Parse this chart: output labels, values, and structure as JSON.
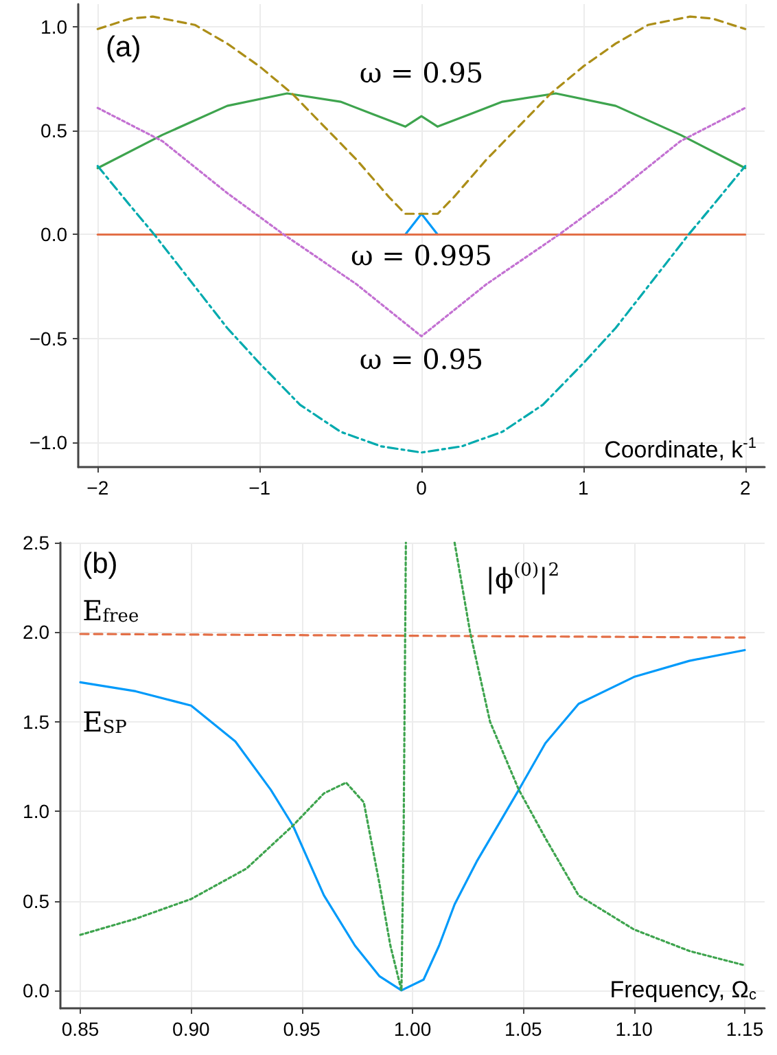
{
  "chart_data": [
    {
      "type": "line",
      "xlabel": "Coordinate, k$^{-1}$",
      "xlim": [
        -2.12,
        2.12
      ],
      "ylim": [
        -1.12,
        1.11
      ],
      "xticks": [
        {
          "value": -2,
          "label": "−2"
        },
        {
          "value": -1,
          "label": "−1"
        },
        0,
        1,
        2
      ],
      "yticks": [
        {
          "value": -1,
          "label": "−1.0"
        },
        {
          "value": -0.5,
          "label": "−0.5"
        },
        {
          "value": 0,
          "label": "0.0"
        },
        {
          "value": 0.5,
          "label": "0.5"
        },
        {
          "value": 1,
          "label": "1.0"
        }
      ],
      "grid": true,
      "annotations": [
        "(a)",
        "ω = 0.95",
        "ω = 0.995",
        "ω = 0.95"
      ],
      "series": [
        {
          "color": "#009afa",
          "line_style": "solid",
          "x": [
            -0.1,
            0,
            0.1
          ],
          "values": [
            0,
            0.1,
            0
          ]
        },
        {
          "color": "#e36f47",
          "line_style": "solid",
          "x": [
            -2,
            2
          ],
          "values": [
            0,
            0
          ]
        },
        {
          "color": "#3ea44e",
          "line_style": "solid",
          "x": [
            -2,
            -1.6,
            -1.2,
            -0.83,
            -0.5,
            -0.3,
            -0.1,
            0,
            0.1,
            0.3,
            0.5,
            0.83,
            1.2,
            1.6,
            2
          ],
          "values": [
            0.32,
            0.48,
            0.62,
            0.68,
            0.64,
            0.58,
            0.52,
            0.57,
            0.52,
            0.58,
            0.64,
            0.68,
            0.62,
            0.48,
            0.32
          ]
        },
        {
          "color": "#c371d2",
          "line_style": "dotted",
          "x": [
            -2,
            -1.6,
            -1.2,
            -0.85,
            -0.4,
            0,
            0.4,
            0.85,
            1.2,
            1.6,
            2
          ],
          "values": [
            0.61,
            0.45,
            0.2,
            0,
            -0.24,
            -0.49,
            -0.24,
            0,
            0.2,
            0.45,
            0.61
          ]
        },
        {
          "color": "#ac8e18",
          "line_style": "dashed",
          "x": [
            -2,
            -1.8,
            -1.66,
            -1.4,
            -1.2,
            -1,
            -0.8,
            -0.6,
            -0.4,
            -0.2,
            -0.1,
            0,
            0.1,
            0.2,
            0.4,
            0.6,
            0.8,
            1,
            1.2,
            1.4,
            1.66,
            1.8,
            2
          ],
          "values": [
            0.99,
            1.04,
            1.05,
            1.01,
            0.92,
            0.81,
            0.68,
            0.52,
            0.36,
            0.18,
            0.1,
            0.1,
            0.1,
            0.18,
            0.36,
            0.52,
            0.68,
            0.81,
            0.92,
            1.01,
            1.05,
            1.04,
            0.99
          ]
        },
        {
          "color": "#00aaae",
          "line_style": "dashdot",
          "x": [
            -2,
            -1.8,
            -1.65,
            -1.4,
            -1.2,
            -1,
            -0.75,
            -0.5,
            -0.25,
            0,
            0.25,
            0.5,
            0.75,
            1,
            1.2,
            1.4,
            1.65,
            1.8,
            2
          ],
          "values": [
            0.33,
            0.14,
            0,
            -0.25,
            -0.45,
            -0.62,
            -0.82,
            -0.95,
            -1.02,
            -1.05,
            -1.02,
            -0.95,
            -0.82,
            -0.62,
            -0.45,
            -0.25,
            0,
            0.14,
            0.33
          ]
        }
      ]
    },
    {
      "type": "line",
      "xlabel": "Frequency, Ω$_{c}$",
      "xlim": [
        0.841,
        1.159
      ],
      "ylim": [
        -0.1,
        2.5
      ],
      "xticks": [
        0.85,
        {
          "value": 0.9,
          "label": "0.90"
        },
        0.95,
        {
          "value": 1,
          "label": "1.00"
        },
        1.05,
        {
          "value": 1.1,
          "label": "1.10"
        },
        1.15
      ],
      "yticks": [
        {
          "value": 0,
          "label": "0.0"
        },
        0.5,
        {
          "value": 1,
          "label": "1.0"
        },
        1.5,
        {
          "value": 2,
          "label": "2.0"
        },
        2.5
      ],
      "grid": true,
      "annotations": [
        "(b)",
        "E$_{free}$",
        "E$_{SP}$",
        "|ϕ$^{(0)}$|$^{2}$"
      ],
      "series": [
        {
          "color": "#e36f47",
          "line_style": "dashed",
          "x": [
            0.85,
            1.15
          ],
          "values": [
            1.99,
            1.97
          ]
        },
        {
          "color": "#009afa",
          "line_style": "solid",
          "x": [
            0.85,
            0.875,
            0.9,
            0.92,
            0.936,
            0.946,
            0.96,
            0.974,
            0.985,
            0.995,
            1.005,
            1.012,
            1.019,
            1.029,
            1.039,
            1.048,
            1.06,
            1.075,
            1.1,
            1.125,
            1.15
          ],
          "values": [
            1.72,
            1.67,
            1.59,
            1.39,
            1.12,
            0.92,
            0.53,
            0.25,
            0.08,
            0,
            0.06,
            0.25,
            0.48,
            0.72,
            0.93,
            1.12,
            1.38,
            1.6,
            1.75,
            1.84,
            1.9
          ]
        },
        {
          "color": "#3ea44e",
          "line_style": "dotted",
          "x": [
            0.85,
            0.875,
            0.9,
            0.925,
            0.946,
            0.96,
            0.97,
            0.978,
            0.985,
            0.99,
            0.995,
            0.996,
            0.997,
            1.008,
            1.019,
            1.026,
            1.035,
            1.048,
            1.06,
            1.075,
            1.1,
            1.125,
            1.15
          ],
          "values": [
            0.31,
            0.4,
            0.51,
            0.68,
            0.92,
            1.1,
            1.16,
            1.05,
            0.6,
            0.25,
            0,
            0.9,
            2.5,
            null,
            2.5,
            2,
            1.5,
            1.12,
            0.85,
            0.53,
            0.34,
            0.22,
            0.14
          ]
        }
      ]
    }
  ]
}
